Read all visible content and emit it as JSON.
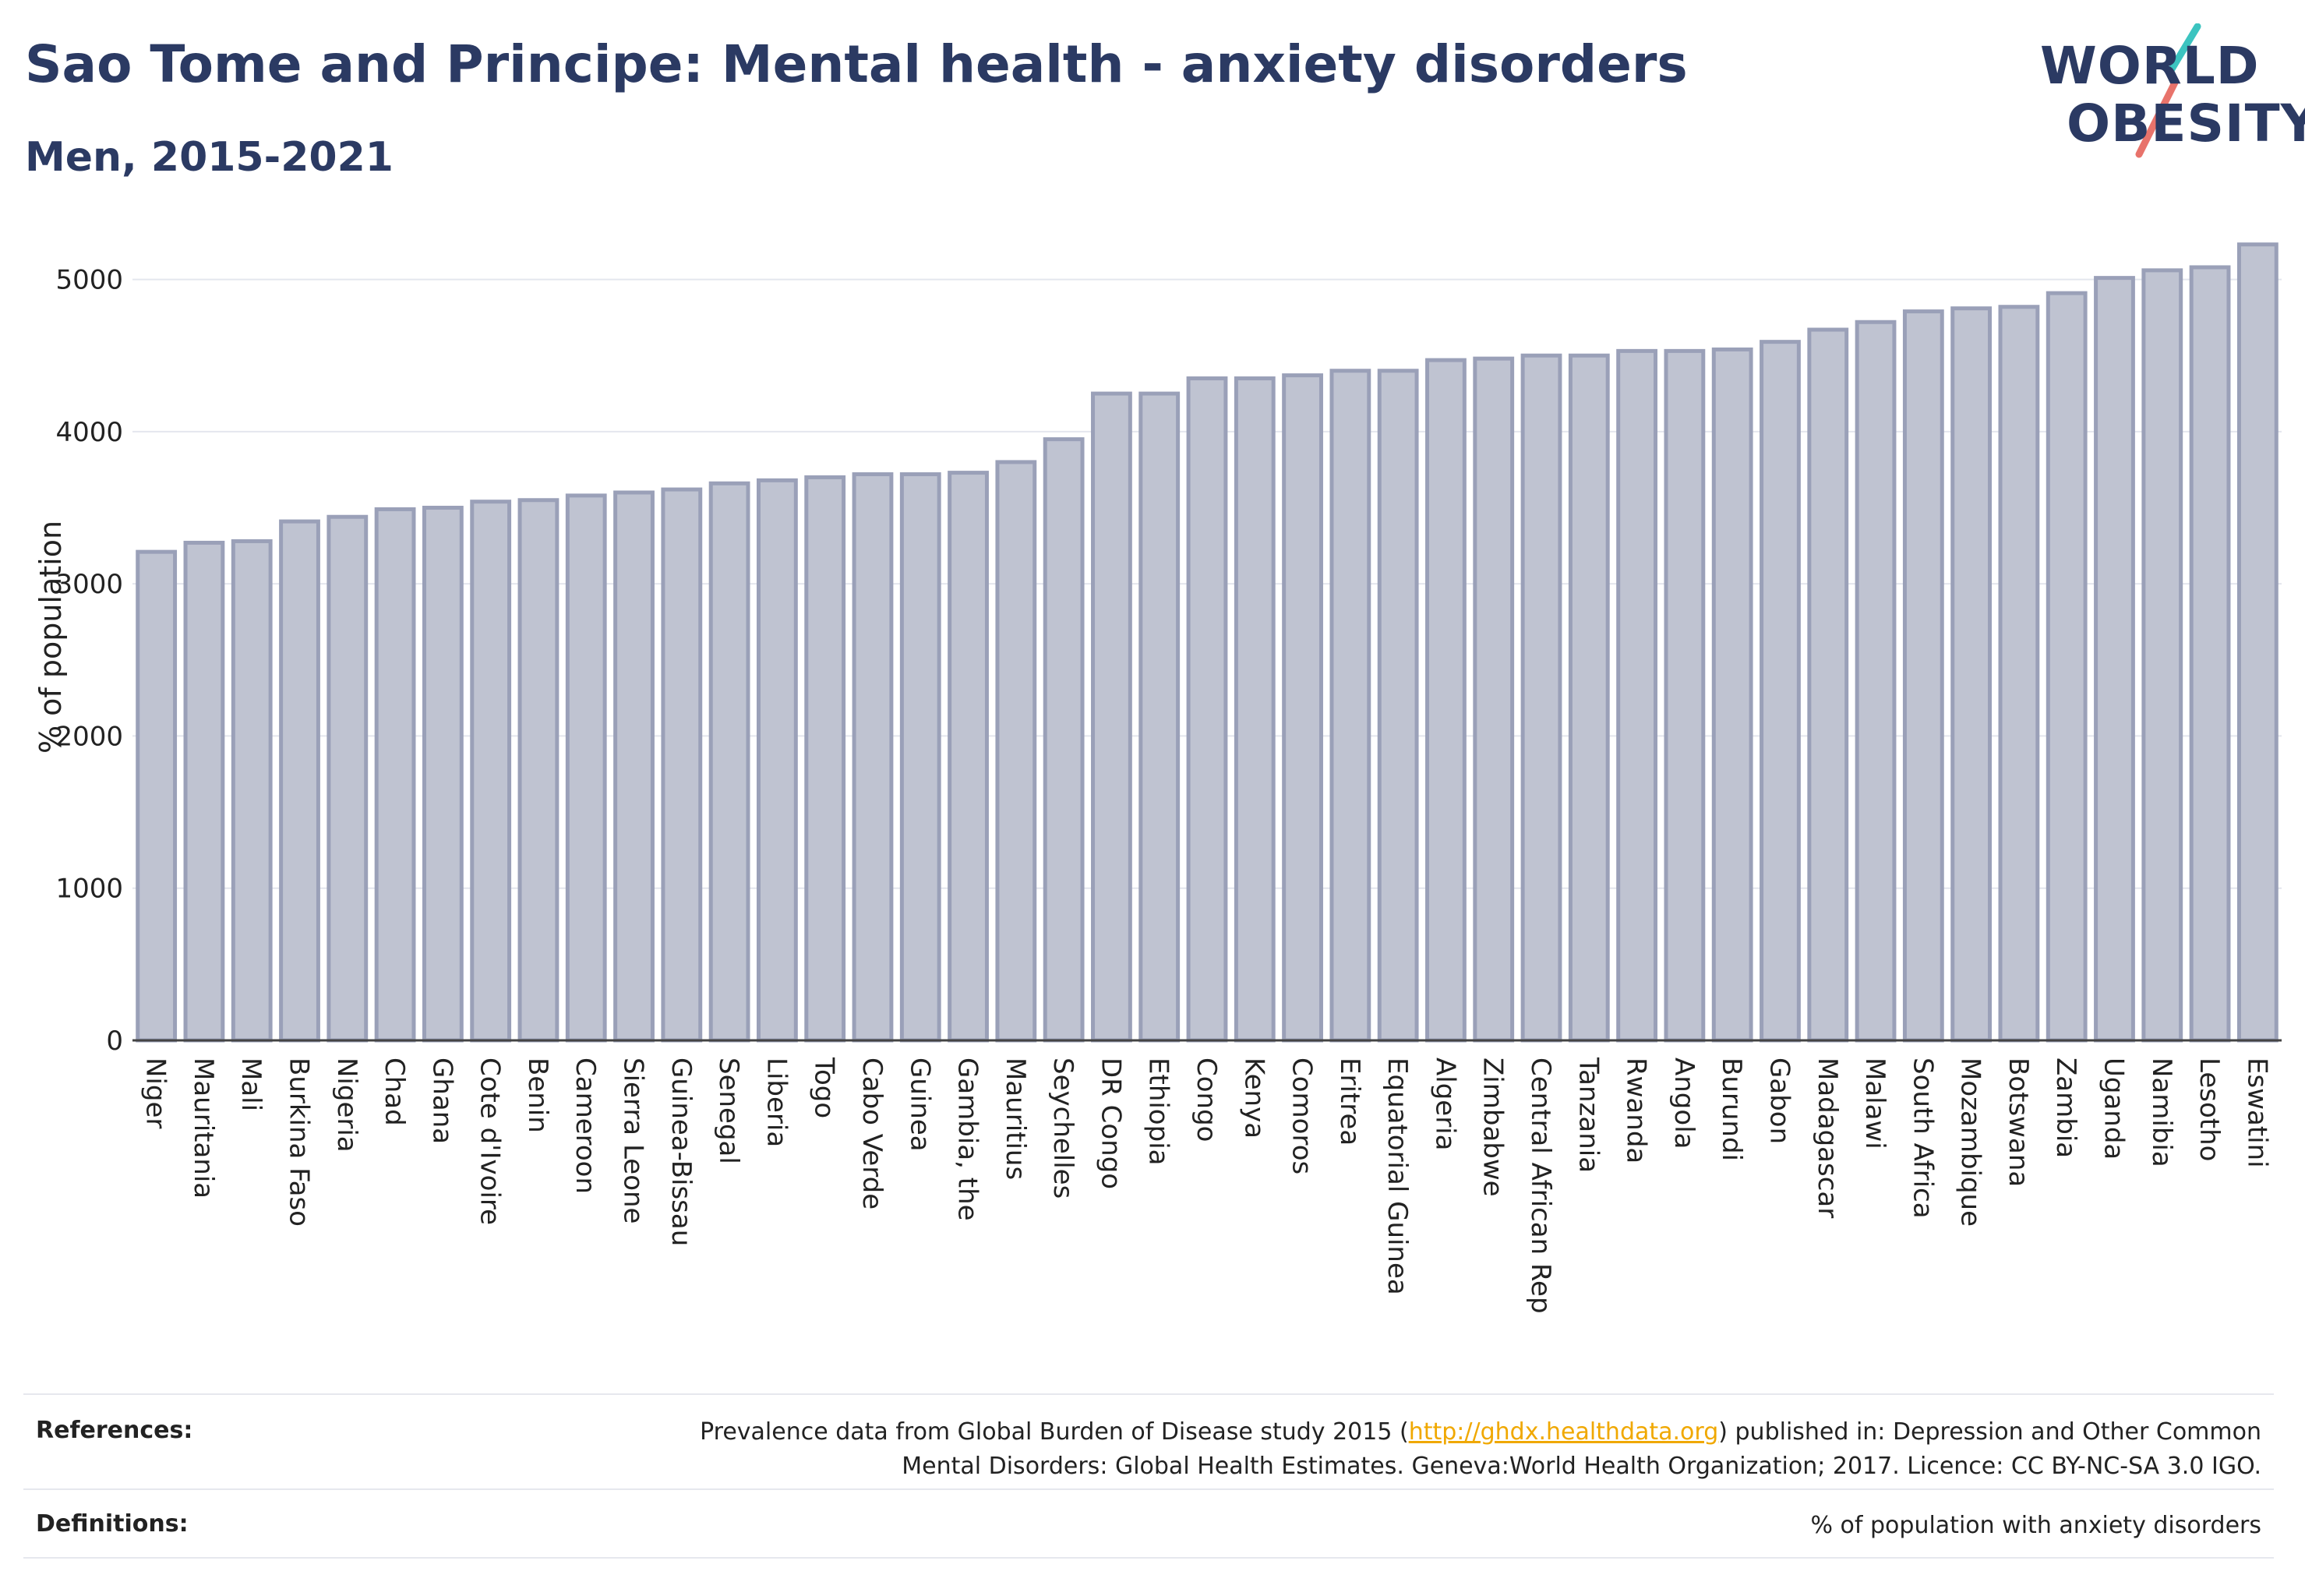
{
  "header": {
    "title": "Sao Tome and Principe: Mental health - anxiety disorders",
    "subtitle": "Men, 2015-2021"
  },
  "logo": {
    "line1": "WORLD",
    "line2": "OBESITY",
    "accent_colors": [
      "#3cc4c0",
      "#e8736b"
    ]
  },
  "colors": {
    "bar_fill": "#bfc3d1",
    "bar_stroke": "#9aa0b8",
    "axis": "#444444",
    "grid": "#e4e6ee",
    "link": "#f0a800",
    "text_dark": "#2b3a63"
  },
  "chart_data": {
    "type": "bar",
    "ylabel": "% of population",
    "ylim": [
      0,
      5300
    ],
    "yticks": [
      0,
      1000,
      2000,
      3000,
      4000,
      5000
    ],
    "grid": true,
    "categories": [
      "Niger",
      "Mauritania",
      "Mali",
      "Burkina Faso",
      "Nigeria",
      "Chad",
      "Ghana",
      "Cote d'Ivoire",
      "Benin",
      "Cameroon",
      "Sierra Leone",
      "Guinea-Bissau",
      "Senegal",
      "Liberia",
      "Togo",
      "Cabo Verde",
      "Guinea",
      "Gambia, the",
      "Mauritius",
      "Seychelles",
      "DR Congo",
      "Ethiopia",
      "Congo",
      "Kenya",
      "Comoros",
      "Eritrea",
      "Equatorial Guinea",
      "Algeria",
      "Zimbabwe",
      "Central African Rep",
      "Tanzania",
      "Rwanda",
      "Angola",
      "Burundi",
      "Gabon",
      "Madagascar",
      "Malawi",
      "South Africa",
      "Mozambique",
      "Botswana",
      "Zambia",
      "Uganda",
      "Namibia",
      "Lesotho",
      "Eswatini"
    ],
    "values": [
      3210,
      3270,
      3280,
      3410,
      3440,
      3490,
      3500,
      3540,
      3550,
      3580,
      3600,
      3620,
      3660,
      3680,
      3700,
      3720,
      3720,
      3730,
      3800,
      3950,
      4250,
      4250,
      4350,
      4350,
      4370,
      4400,
      4400,
      4470,
      4480,
      4500,
      4500,
      4530,
      4530,
      4540,
      4590,
      4670,
      4720,
      4790,
      4810,
      4820,
      4910,
      5010,
      5060,
      5080,
      5230
    ]
  },
  "footer": {
    "references_label": "References:",
    "references_prefix": "Prevalence data from Global Burden of Disease study 2015 (",
    "references_link": "http://ghdx.healthdata.org",
    "references_suffix": ") published in: Depression and Other Common",
    "references_line2": "Mental Disorders: Global Health Estimates. Geneva:World Health Organization; 2017. Licence: CC BY-NC-SA 3.0 IGO.",
    "definitions_label": "Definitions:",
    "definitions_text": "% of population with anxiety disorders"
  }
}
